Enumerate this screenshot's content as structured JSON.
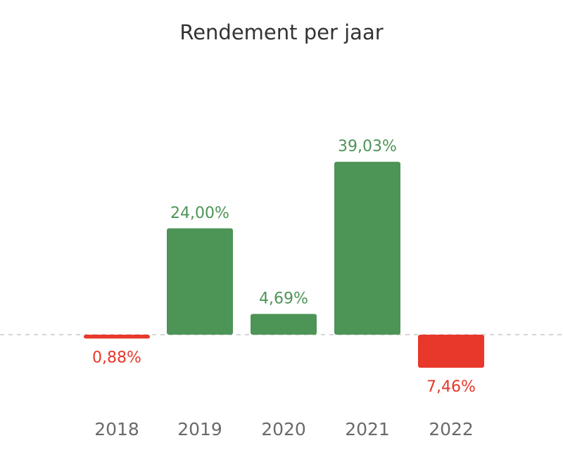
{
  "chart_data": {
    "type": "bar",
    "title": "Rendement per jaar",
    "categories": [
      "2018",
      "2019",
      "2020",
      "2021",
      "2022"
    ],
    "values": [
      -0.88,
      24.0,
      4.69,
      39.03,
      -7.46
    ],
    "value_labels": [
      "0,88%",
      "24,00%",
      "4,69%",
      "39,03%",
      "7,46%"
    ],
    "xlabel": "",
    "ylabel": "",
    "ylim": [
      -10,
      45
    ],
    "unit": "%",
    "baseline": "dashed line at 0",
    "grid": false,
    "legend": "none"
  },
  "colors": {
    "positive": "#4d9457",
    "negative": "#e8372b",
    "positive_label": "#4d9457",
    "negative_label": "#e8372b",
    "baseline": "#c9c9c9",
    "title": "#333333",
    "tick": "#6a6a6a"
  }
}
